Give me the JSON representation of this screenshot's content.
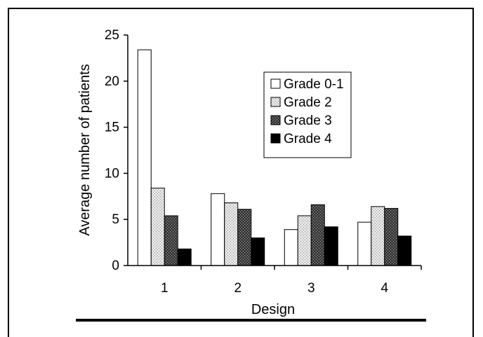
{
  "chart_data": {
    "type": "bar",
    "title": "",
    "xlabel": "Design",
    "ylabel": "Average number of patients",
    "categories": [
      "1",
      "2",
      "3",
      "4"
    ],
    "ylim": [
      0,
      25
    ],
    "yticks": [
      "0",
      "5",
      "10",
      "15",
      "20",
      "25"
    ],
    "grid": false,
    "legend_position": "top-right",
    "series": [
      {
        "name": "Grade 0-1",
        "values": [
          23.4,
          7.8,
          3.9,
          4.7
        ],
        "fill": "white",
        "color": "#ffffff"
      },
      {
        "name": "Grade 2",
        "values": [
          8.4,
          6.8,
          5.4,
          6.4
        ],
        "fill": "light-gray",
        "color": "#d4d4d4"
      },
      {
        "name": "Grade 3",
        "values": [
          5.4,
          6.1,
          6.6,
          6.2
        ],
        "fill": "dark-gray",
        "color": "#5e5e5e"
      },
      {
        "name": "Grade 4",
        "values": [
          1.8,
          3.0,
          4.2,
          3.2
        ],
        "fill": "black",
        "color": "#000000"
      }
    ]
  }
}
